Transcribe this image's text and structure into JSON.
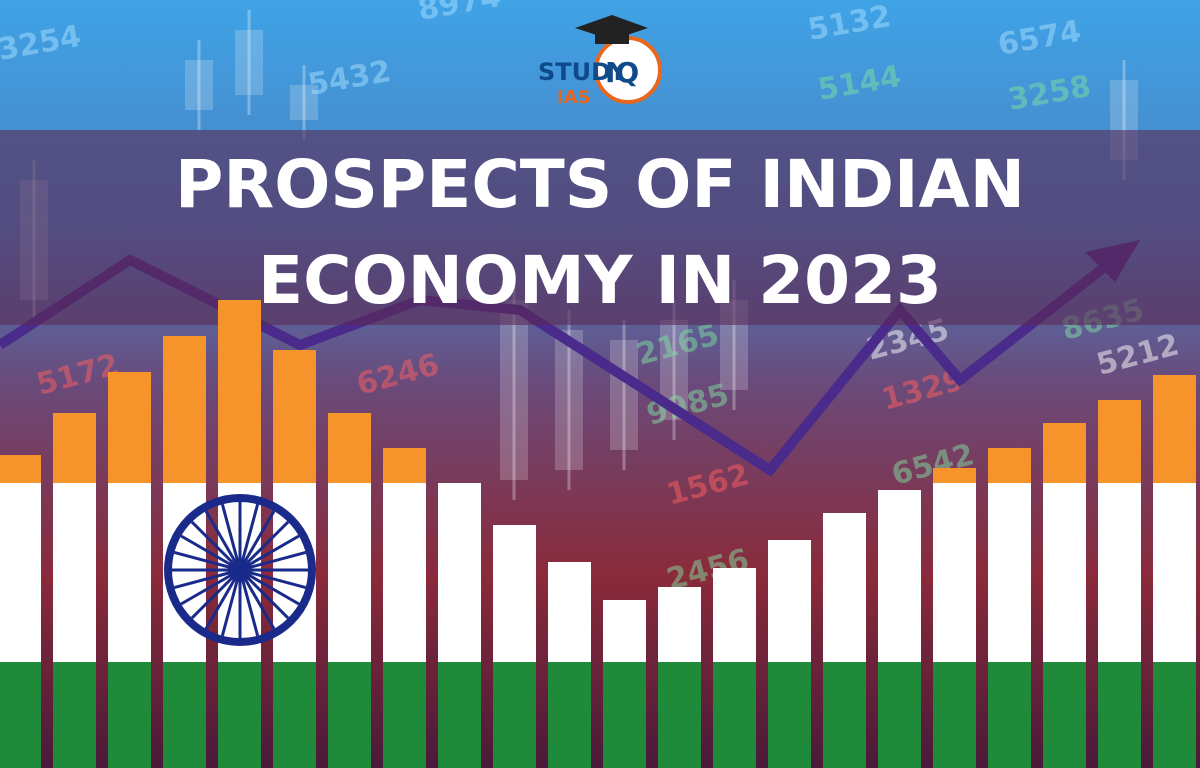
{
  "logo": {
    "study": "STUDY",
    "iq": "IQ",
    "ias": "IAS"
  },
  "title": {
    "line1": "PROSPECTS OF INDIAN",
    "line2": "ECONOMY IN 2023"
  },
  "background_numbers": [
    "3254",
    "5432",
    "8974",
    "5132",
    "6574",
    "5144",
    "3258",
    "6246",
    "2165",
    "9985",
    "1562",
    "2456",
    "6542",
    "1329",
    "2345",
    "5212",
    "8635",
    "5172"
  ]
}
